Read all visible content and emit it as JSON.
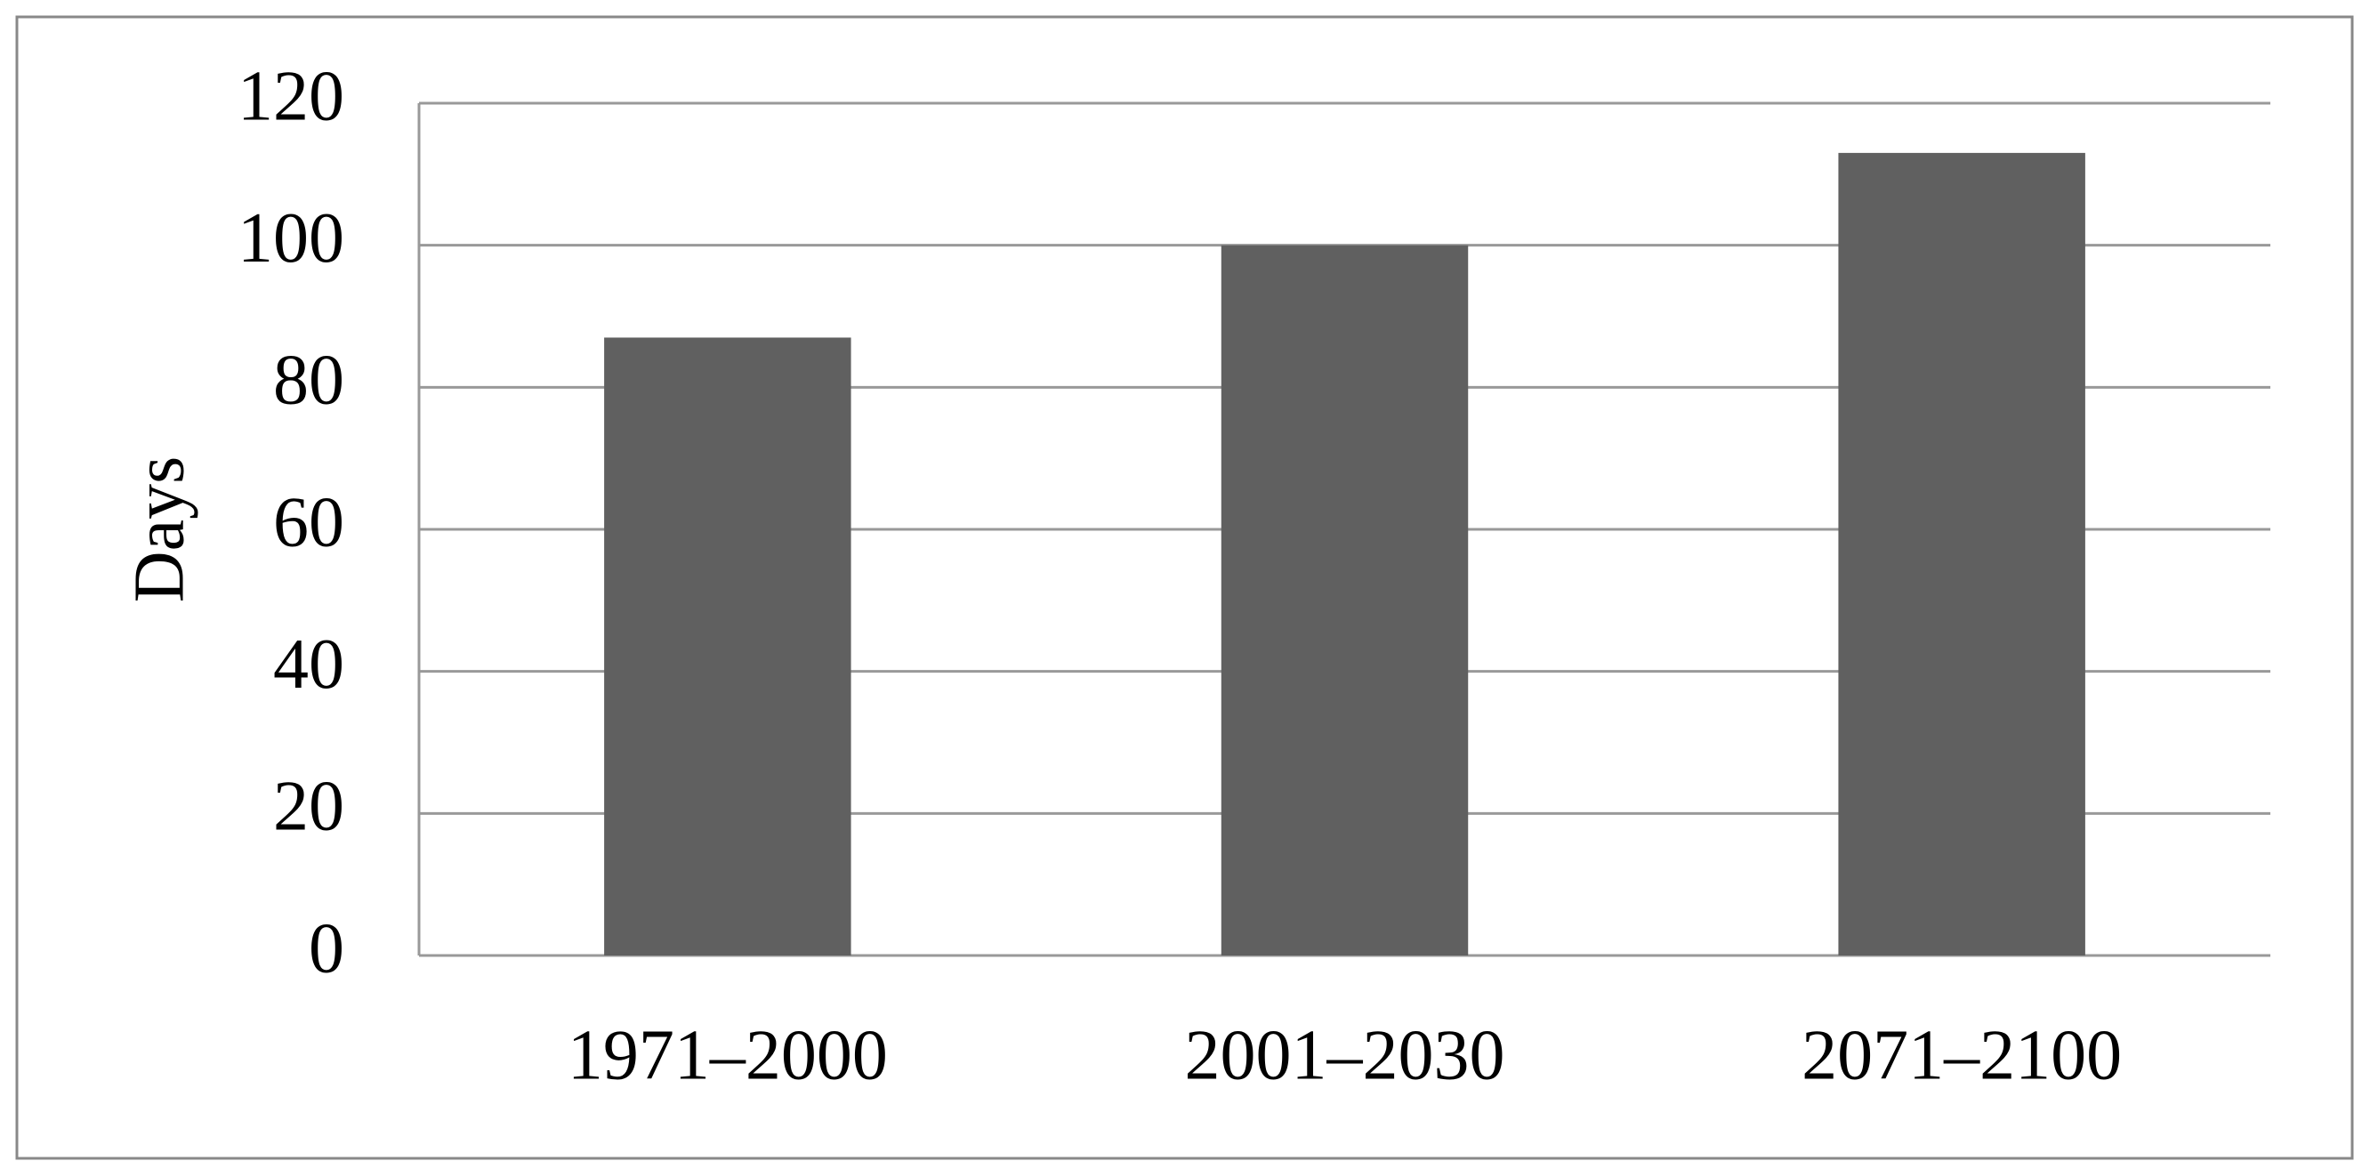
{
  "chart_data": {
    "type": "bar",
    "y_label": "Days",
    "categories": [
      "1971–2000",
      "2001–2030",
      "2071–2100"
    ],
    "values": [
      87,
      100,
      113
    ],
    "color": "#606060",
    "ylim": [
      0,
      120
    ],
    "yticks": [
      0,
      20,
      40,
      60,
      80,
      100,
      120
    ],
    "grid": true
  }
}
